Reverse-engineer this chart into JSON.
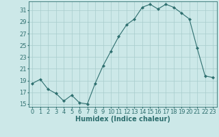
{
  "x": [
    0,
    1,
    2,
    3,
    4,
    5,
    6,
    7,
    8,
    9,
    10,
    11,
    12,
    13,
    14,
    15,
    16,
    17,
    18,
    19,
    20,
    21,
    22,
    23
  ],
  "y": [
    18.5,
    19.2,
    17.5,
    16.8,
    15.5,
    16.5,
    15.2,
    15.0,
    18.5,
    21.5,
    24.0,
    26.5,
    28.5,
    29.5,
    31.5,
    32.0,
    31.2,
    32.0,
    31.5,
    30.5,
    29.5,
    24.5,
    19.8,
    19.5
  ],
  "line_color": "#2d6e6e",
  "marker": "D",
  "marker_size": 2.2,
  "bg_color": "#cce8e8",
  "grid_color": "#a8cccc",
  "xlabel": "Humidex (Indice chaleur)",
  "xlim": [
    -0.5,
    23.5
  ],
  "ylim": [
    14.5,
    32.5
  ],
  "yticks": [
    15,
    17,
    19,
    21,
    23,
    25,
    27,
    29,
    31
  ],
  "xticks": [
    0,
    1,
    2,
    3,
    4,
    5,
    6,
    7,
    8,
    9,
    10,
    11,
    12,
    13,
    14,
    15,
    16,
    17,
    18,
    19,
    20,
    21,
    22,
    23
  ],
  "xlabel_fontsize": 7.0,
  "tick_fontsize": 6.0,
  "tick_color": "#2d6e6e",
  "axis_color": "#2d6e6e"
}
